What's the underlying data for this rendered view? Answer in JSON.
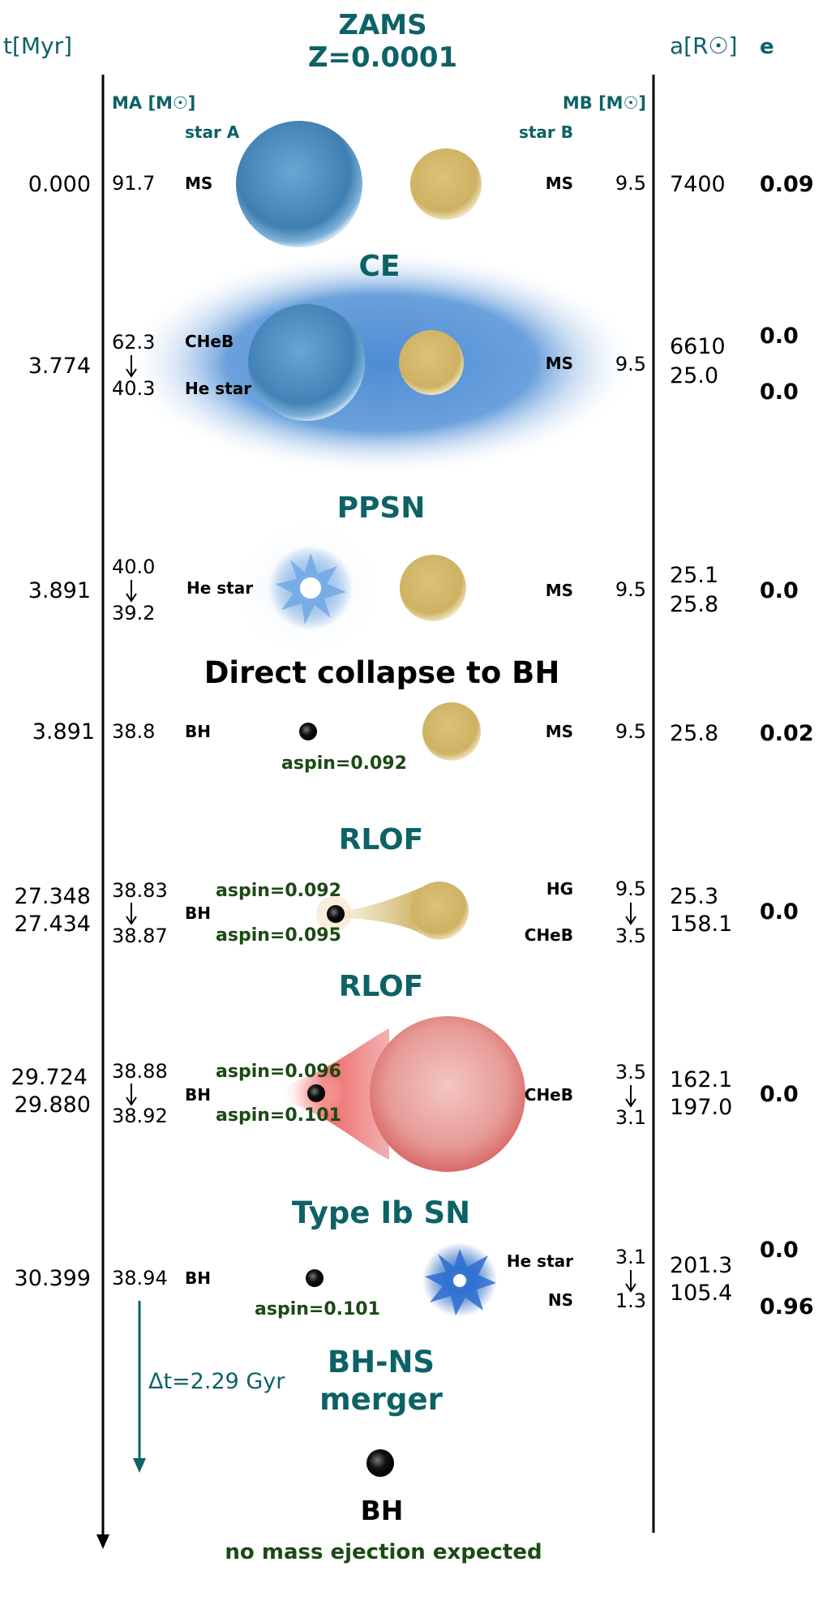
{
  "header": {
    "time_axis_label": "t[Myr]",
    "title_line1": "ZAMS",
    "title_line2": "Z=0.0001",
    "sep_label": "a[R☉]",
    "ecc_label": "e",
    "mass_a_label": "MA [M☉]",
    "mass_b_label": "MB [M☉]",
    "star_a_label": "star A",
    "star_b_label": "star B"
  },
  "colors": {
    "heading": "#0d6266",
    "spin_text": "#1b4a14",
    "star_a_blue": "#3f86b8",
    "star_b_yellow": "#d0b55e",
    "ce_envelope": "#5b95d6",
    "rlof_red": "#e06060"
  },
  "stages": {
    "zams": {
      "time": "0.000",
      "mass_a": "91.7",
      "type_a": "MS",
      "type_b": "MS",
      "mass_b": "9.5",
      "sep": "7400",
      "ecc": "0.09"
    },
    "ce": {
      "title": "CE",
      "time": "3.774",
      "mass_a_start": "62.3",
      "mass_a_end": "40.3",
      "type_a_start": "CHeB",
      "type_a_end": "He star",
      "type_b": "MS",
      "mass_b": "9.5",
      "sep_start": "6610",
      "sep_end": "25.0",
      "ecc_start": "0.0",
      "ecc_end": "0.0"
    },
    "ppsn": {
      "title": "PPSN",
      "time": "3.891",
      "mass_a_start": "40.0",
      "mass_a_end": "39.2",
      "type_a": "He star",
      "type_b": "MS",
      "mass_b": "9.5",
      "sep_start": "25.1",
      "sep_end": "25.8",
      "ecc": "0.0"
    },
    "collapse": {
      "title": "Direct collapse to BH",
      "time": "3.891",
      "mass_a": "38.8",
      "type_a": "BH",
      "spin": "aspin=0.092",
      "type_b": "MS",
      "mass_b": "9.5",
      "sep": "25.8",
      "ecc": "0.02"
    },
    "rlof1": {
      "title": "RLOF",
      "time_start": "27.348",
      "time_end": "27.434",
      "mass_a_start": "38.83",
      "mass_a_end": "38.87",
      "type_a": "BH",
      "spin_start": "aspin=0.092",
      "spin_end": "aspin=0.095",
      "type_b_start": "HG",
      "type_b_end": "CHeB",
      "mass_b_start": "9.5",
      "mass_b_end": "3.5",
      "sep_start": "25.3",
      "sep_end": "158.1",
      "ecc": "0.0"
    },
    "rlof2": {
      "title": "RLOF",
      "time_start": "29.724",
      "time_end": "29.880",
      "mass_a_start": "38.88",
      "mass_a_end": "38.92",
      "type_a": "BH",
      "spin_start": "aspin=0.096",
      "spin_end": "aspin=0.101",
      "type_b": "CHeB",
      "mass_b_start": "3.5",
      "mass_b_end": "3.1",
      "sep_start": "162.1",
      "sep_end": "197.0",
      "ecc": "0.0"
    },
    "sn": {
      "title": "Type Ib SN",
      "time": "30.399",
      "mass_a": "38.94",
      "type_a": "BH",
      "spin": "aspin=0.101",
      "type_b_start": "He star",
      "type_b_end": "NS",
      "mass_b_start": "3.1",
      "mass_b_end": "1.3",
      "sep_start": "201.3",
      "sep_end": "105.4",
      "ecc_start": "0.0",
      "ecc_end": "0.96"
    },
    "merger": {
      "title_line1": "BH-NS",
      "title_line2": "merger",
      "delay": "Δt=2.29 Gyr",
      "result": "BH",
      "note": "no mass ejection expected"
    }
  }
}
